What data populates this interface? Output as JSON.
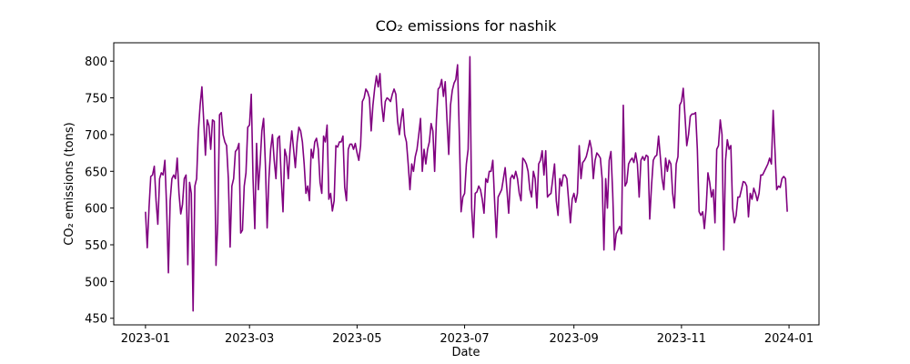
{
  "chart_data": {
    "type": "line",
    "title": "CO₂ emissions for nashik",
    "x_label": "Date",
    "y_label": "CO₂ emissions (tons)",
    "color": "#800080",
    "xlim": [
      -18,
      382
    ],
    "ylim": [
      441,
      825
    ],
    "xticks": [
      {
        "value": 0,
        "label": "2023-01"
      },
      {
        "value": 59,
        "label": "2023-03"
      },
      {
        "value": 120,
        "label": "2023-05"
      },
      {
        "value": 181,
        "label": "2023-07"
      },
      {
        "value": 243,
        "label": "2023-09"
      },
      {
        "value": 304,
        "label": "2023-11"
      },
      {
        "value": 365,
        "label": "2024-01"
      }
    ],
    "yticks": [
      450,
      500,
      550,
      600,
      650,
      700,
      750,
      800
    ],
    "x": [
      0,
      1,
      2,
      3,
      4,
      5,
      6,
      7,
      8,
      9,
      10,
      11,
      12,
      13,
      14,
      15,
      16,
      17,
      18,
      19,
      20,
      21,
      22,
      23,
      24,
      25,
      26,
      27,
      28,
      29,
      30,
      31,
      32,
      33,
      34,
      35,
      36,
      37,
      38,
      39,
      40,
      41,
      42,
      43,
      44,
      45,
      46,
      47,
      48,
      49,
      50,
      51,
      52,
      53,
      54,
      55,
      56,
      57,
      58,
      59,
      60,
      61,
      62,
      63,
      64,
      65,
      66,
      67,
      68,
      69,
      70,
      71,
      72,
      73,
      74,
      75,
      76,
      77,
      78,
      79,
      80,
      81,
      82,
      83,
      84,
      85,
      86,
      87,
      88,
      89,
      90,
      91,
      92,
      93,
      94,
      95,
      96,
      97,
      98,
      99,
      100,
      101,
      102,
      103,
      104,
      105,
      106,
      107,
      108,
      109,
      110,
      111,
      112,
      113,
      114,
      115,
      116,
      117,
      118,
      119,
      120,
      121,
      122,
      123,
      124,
      125,
      126,
      127,
      128,
      129,
      130,
      131,
      132,
      133,
      134,
      135,
      136,
      137,
      138,
      139,
      140,
      141,
      142,
      143,
      144,
      145,
      146,
      147,
      148,
      149,
      150,
      151,
      152,
      153,
      154,
      155,
      156,
      157,
      158,
      159,
      160,
      161,
      162,
      163,
      164,
      165,
      166,
      167,
      168,
      169,
      170,
      171,
      172,
      173,
      174,
      175,
      176,
      177,
      178,
      179,
      180,
      181,
      182,
      183,
      184,
      185,
      186,
      187,
      188,
      189,
      190,
      191,
      192,
      193,
      194,
      195,
      196,
      197,
      198,
      199,
      200,
      201,
      202,
      203,
      204,
      205,
      206,
      207,
      208,
      209,
      210,
      211,
      212,
      213,
      214,
      215,
      216,
      217,
      218,
      219,
      220,
      221,
      222,
      223,
      224,
      225,
      226,
      227,
      228,
      229,
      230,
      231,
      232,
      233,
      234,
      235,
      236,
      237,
      238,
      239,
      240,
      241,
      242,
      243,
      244,
      245,
      246,
      247,
      248,
      249,
      250,
      251,
      252,
      253,
      254,
      255,
      256,
      257,
      258,
      259,
      260,
      261,
      262,
      263,
      264,
      265,
      266,
      267,
      268,
      269,
      270,
      271,
      272,
      273,
      274,
      275,
      276,
      277,
      278,
      279,
      280,
      281,
      282,
      283,
      284,
      285,
      286,
      287,
      288,
      289,
      290,
      291,
      292,
      293,
      294,
      295,
      296,
      297,
      298,
      299,
      300,
      301,
      302,
      303,
      304,
      305,
      306,
      307,
      308,
      309,
      310,
      311,
      312,
      313,
      314,
      315,
      316,
      317,
      318,
      319,
      320,
      321,
      322,
      323,
      324,
      325,
      326,
      327,
      328,
      329,
      330,
      331,
      332,
      333,
      334,
      335,
      336,
      337,
      338,
      339,
      340,
      341,
      342,
      343,
      344,
      345,
      346,
      347,
      348,
      349,
      350,
      351,
      352,
      353,
      354,
      355,
      356,
      357,
      358,
      359,
      360,
      361,
      362,
      363,
      364
    ],
    "values": [
      595,
      546,
      600,
      643,
      645,
      657,
      610,
      578,
      640,
      648,
      645,
      665,
      600,
      512,
      610,
      640,
      645,
      640,
      668,
      620,
      592,
      605,
      640,
      645,
      523,
      635,
      620,
      460,
      630,
      640,
      705,
      740,
      765,
      720,
      672,
      720,
      712,
      680,
      720,
      718,
      522,
      580,
      727,
      730,
      700,
      690,
      685,
      640,
      547,
      630,
      640,
      677,
      680,
      688,
      566,
      570,
      630,
      648,
      710,
      713,
      755,
      640,
      572,
      688,
      625,
      660,
      705,
      722,
      660,
      573,
      640,
      680,
      700,
      665,
      640,
      695,
      698,
      640,
      595,
      680,
      670,
      640,
      680,
      705,
      680,
      655,
      690,
      710,
      705,
      690,
      660,
      620,
      630,
      610,
      680,
      668,
      690,
      695,
      680,
      635,
      620,
      698,
      690,
      713,
      612,
      620,
      596,
      610,
      685,
      683,
      690,
      690,
      698,
      628,
      610,
      680,
      687,
      687,
      680,
      688,
      675,
      665,
      685,
      745,
      750,
      762,
      758,
      750,
      705,
      740,
      763,
      780,
      765,
      783,
      740,
      718,
      745,
      750,
      748,
      745,
      755,
      762,
      755,
      718,
      700,
      720,
      735,
      700,
      690,
      660,
      625,
      660,
      650,
      670,
      680,
      700,
      722,
      650,
      680,
      660,
      680,
      690,
      715,
      705,
      650,
      720,
      762,
      765,
      775,
      752,
      772,
      720,
      673,
      740,
      760,
      770,
      775,
      795,
      700,
      595,
      615,
      620,
      660,
      680,
      806,
      600,
      560,
      620,
      622,
      630,
      625,
      612,
      593,
      640,
      635,
      650,
      650,
      665,
      610,
      560,
      615,
      620,
      625,
      640,
      655,
      625,
      593,
      640,
      645,
      640,
      650,
      640,
      620,
      610,
      668,
      665,
      660,
      650,
      625,
      615,
      650,
      640,
      600,
      660,
      665,
      678,
      645,
      678,
      615,
      618,
      620,
      640,
      660,
      610,
      590,
      640,
      630,
      645,
      645,
      640,
      610,
      580,
      612,
      620,
      608,
      620,
      685,
      640,
      662,
      665,
      670,
      680,
      692,
      680,
      640,
      665,
      675,
      672,
      668,
      640,
      543,
      640,
      600,
      665,
      677,
      620,
      543,
      565,
      570,
      575,
      565,
      740,
      630,
      635,
      660,
      665,
      668,
      662,
      675,
      660,
      615,
      665,
      670,
      665,
      672,
      670,
      585,
      630,
      665,
      670,
      672,
      698,
      670,
      640,
      625,
      668,
      650,
      665,
      660,
      620,
      600,
      660,
      670,
      740,
      745,
      763,
      725,
      685,
      700,
      725,
      728,
      728,
      730,
      680,
      595,
      590,
      595,
      572,
      600,
      648,
      635,
      615,
      625,
      580,
      680,
      685,
      720,
      700,
      543,
      665,
      693,
      680,
      685,
      600,
      580,
      590,
      615,
      615,
      625,
      636,
      635,
      630,
      588,
      620,
      612,
      627,
      620,
      610,
      620,
      645,
      645,
      650,
      655,
      660,
      668,
      660,
      733,
      680,
      625,
      630,
      628,
      640,
      643,
      640,
      595
    ]
  }
}
